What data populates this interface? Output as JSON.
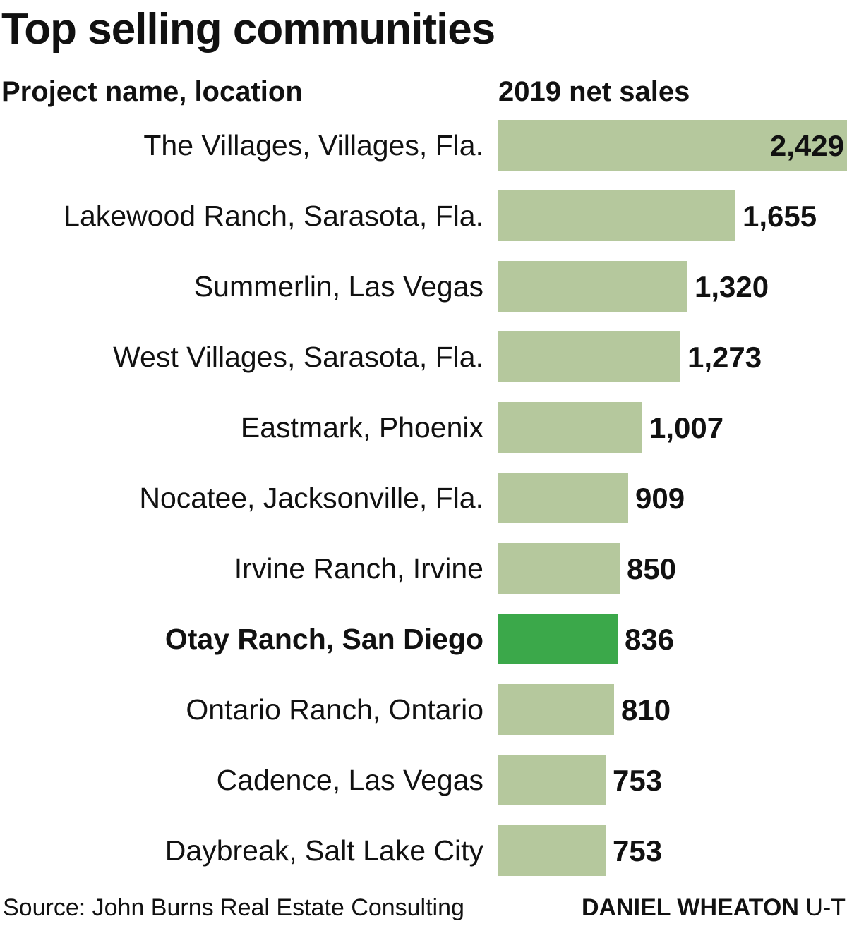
{
  "title": "Top selling communities",
  "column_headers": {
    "label_column": "Project name, location",
    "value_column": "2019 net sales"
  },
  "colors": {
    "bar": "#b5c89d",
    "highlight_bar": "#3ba84a",
    "text": "#111111"
  },
  "chart_data": {
    "type": "bar",
    "orientation": "horizontal",
    "categories": [
      "The Villages, Villages, Fla.",
      "Lakewood Ranch, Sarasota, Fla.",
      "Summerlin, Las Vegas",
      "West Villages, Sarasota, Fla.",
      "Eastmark, Phoenix",
      "Nocatee, Jacksonville, Fla.",
      "Irvine Ranch, Irvine",
      "Otay Ranch, San Diego",
      "Ontario Ranch, Ontario",
      "Cadence, Las Vegas",
      "Daybreak, Salt Lake City"
    ],
    "values": [
      2429,
      1655,
      1320,
      1273,
      1007,
      909,
      850,
      836,
      810,
      753,
      753
    ],
    "value_labels": [
      "2,429",
      "1,655",
      "1,320",
      "1,273",
      "1,007",
      "909",
      "850",
      "836",
      "810",
      "753",
      "753"
    ],
    "highlight": "Otay Ranch, San Diego",
    "xlim": [
      0,
      2429
    ],
    "grid": false,
    "legend": "none"
  },
  "footer": {
    "source": "Source: John Burns Real Estate Consulting",
    "credit_name": "DANIEL WHEATON",
    "credit_org": "U-T"
  }
}
